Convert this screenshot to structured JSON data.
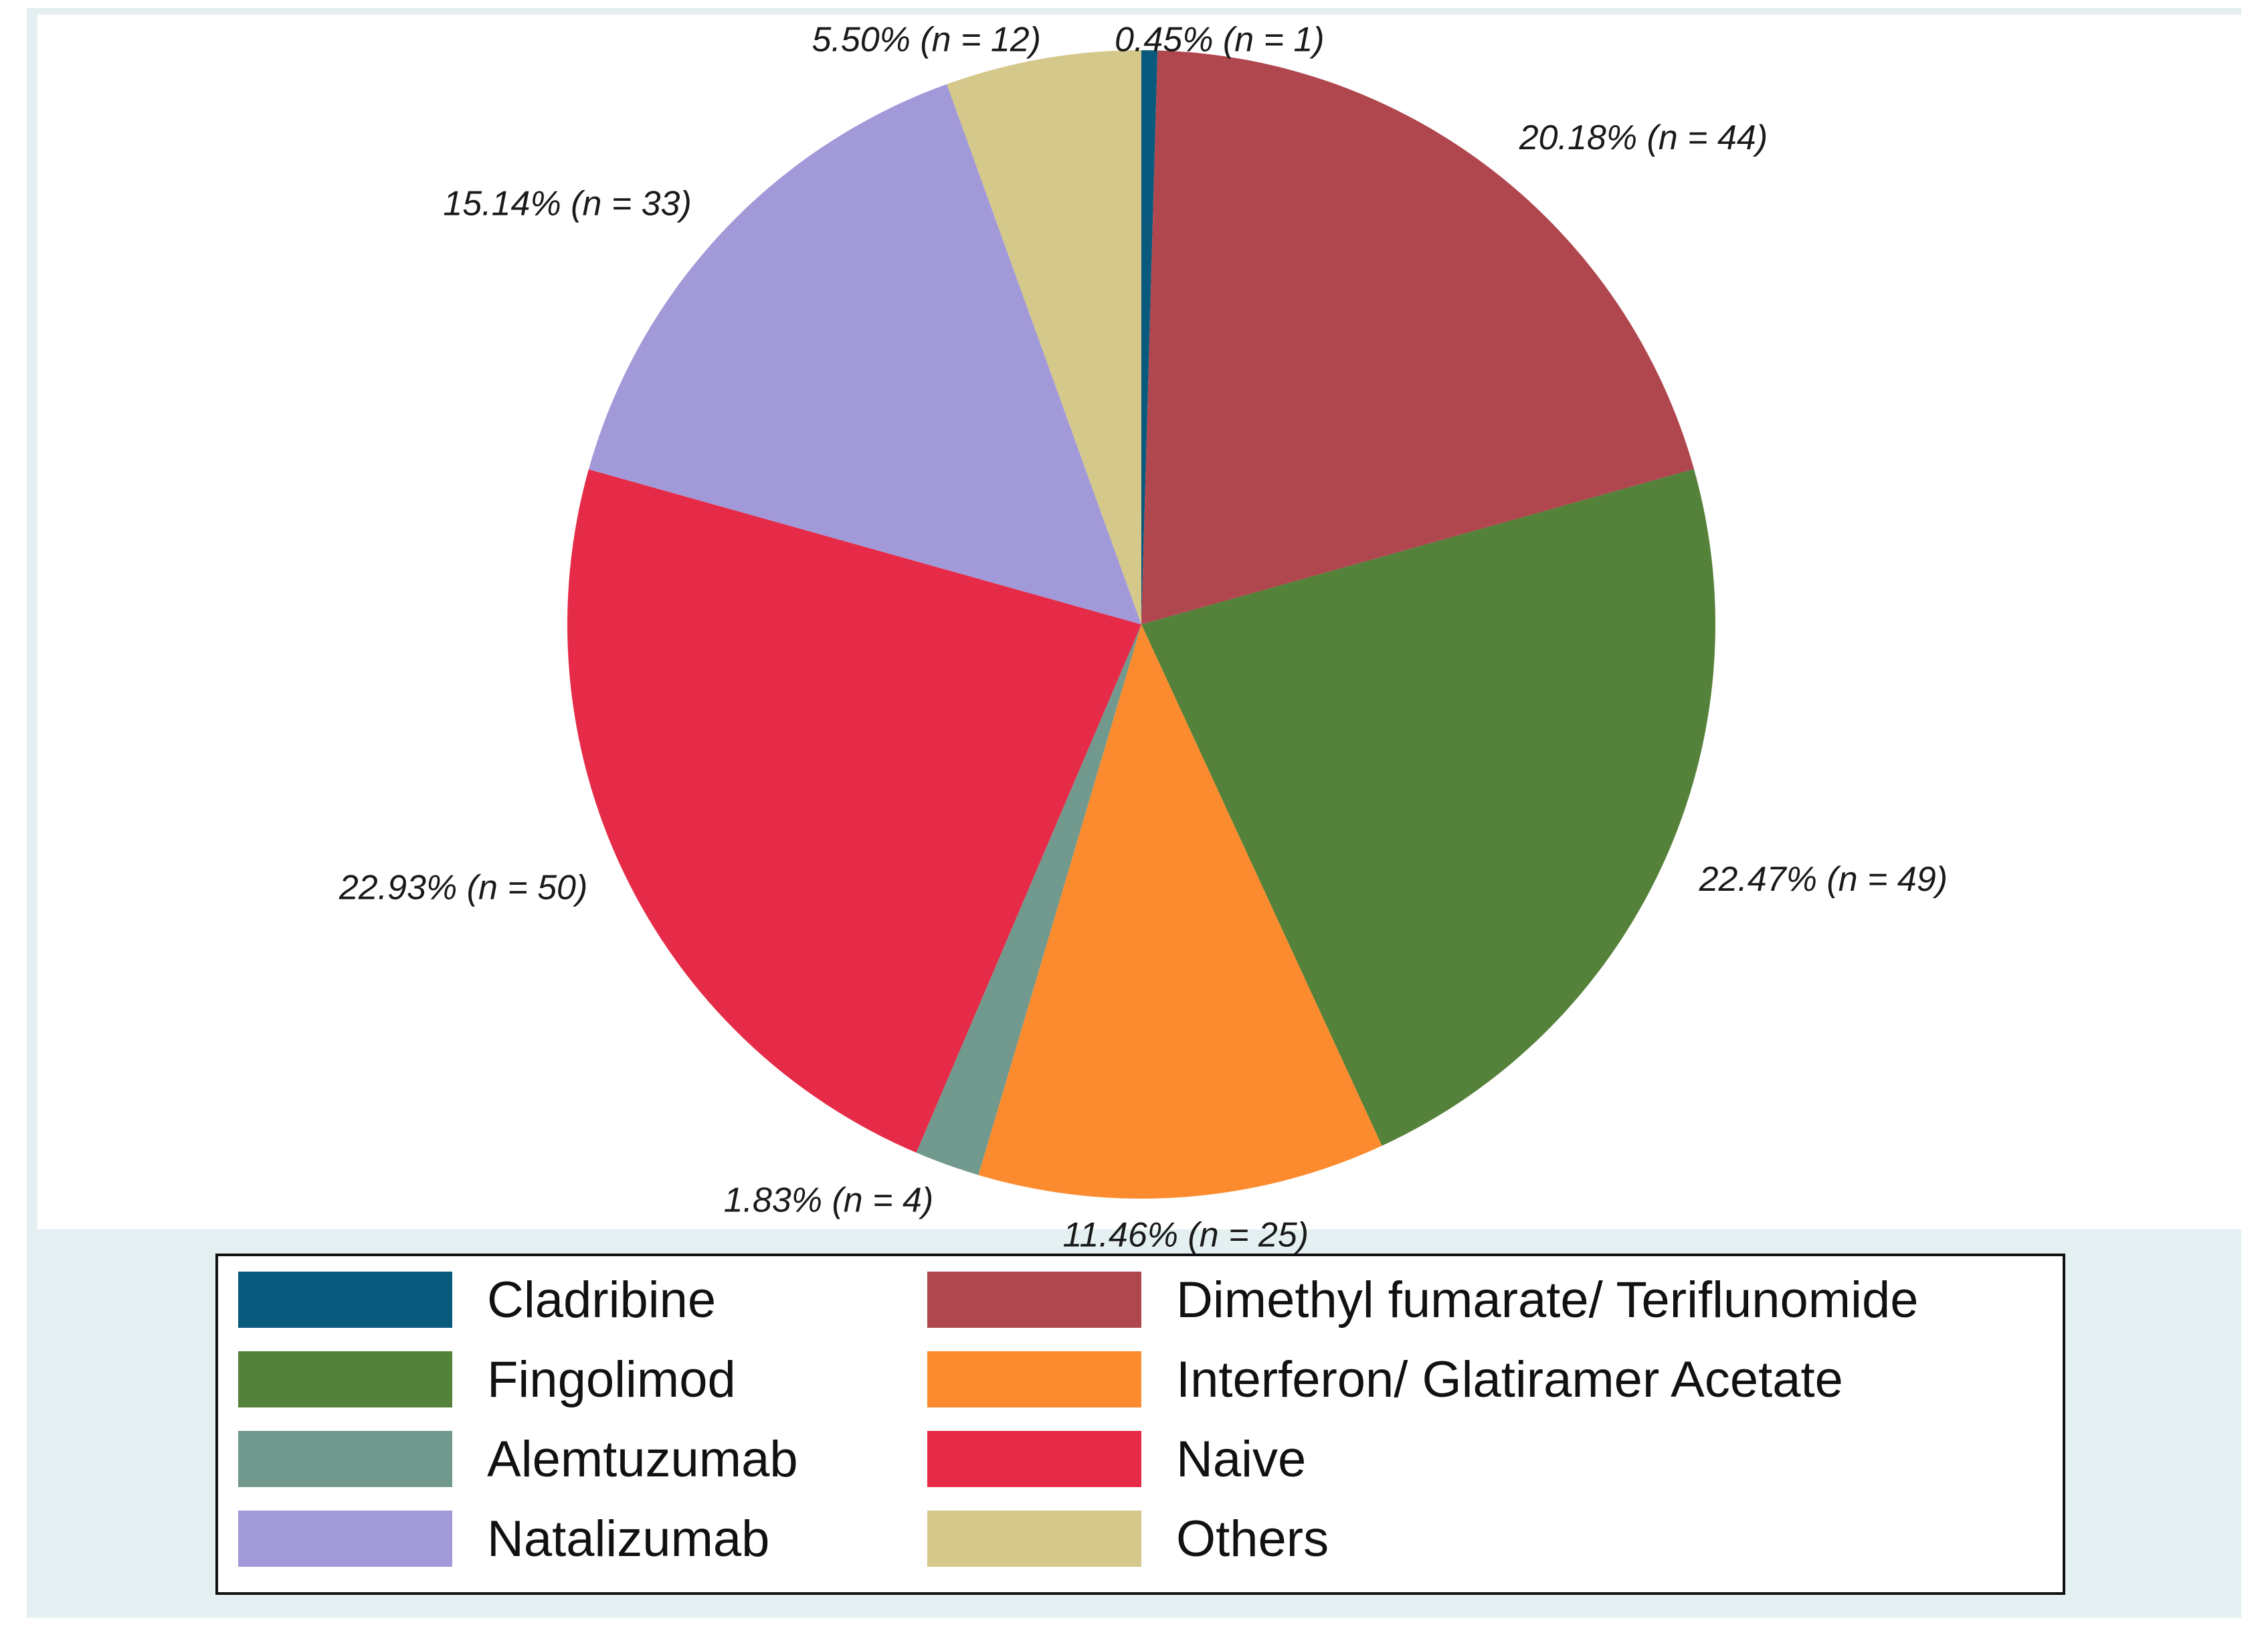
{
  "chart_data": {
    "type": "pie",
    "title": "",
    "start": "12 o'clock",
    "direction": "clockwise",
    "slices": [
      {
        "name": "Cladribine",
        "label": "0.45% (n = 1)",
        "percent": 0.45,
        "n": 1,
        "color": "#0a5a7e"
      },
      {
        "name": "Dimethyl fumarate/ Teriflunomide",
        "label": "20.18% (n = 44)",
        "percent": 20.18,
        "n": 44,
        "color": "#b0464e"
      },
      {
        "name": "Fingolimod",
        "label": "22.47% (n = 49)",
        "percent": 22.47,
        "n": 49,
        "color": "#55823a"
      },
      {
        "name": "Interferon/ Glatiramer Acetate",
        "label": "11.46% (n = 25)",
        "percent": 11.46,
        "n": 25,
        "color": "#fb8b2e"
      },
      {
        "name": "Alemtuzumab",
        "label": "1.83% (n = 4)",
        "percent": 1.83,
        "n": 4,
        "color": "#71998e"
      },
      {
        "name": "Naive",
        "label": "22.93% (n = 50)",
        "percent": 22.93,
        "n": 50,
        "color": "#e52b47"
      },
      {
        "name": "Natalizumab",
        "label": "15.14% (n = 33)",
        "percent": 15.14,
        "n": 33,
        "color": "#a299d9"
      },
      {
        "name": "Others",
        "label": "5.50% (n = 12)",
        "percent": 5.5,
        "n": 12,
        "color": "#d4c88b"
      }
    ],
    "legend": {
      "placement": "bottom",
      "columns": 2,
      "entries": [
        "Cladribine",
        "Dimethyl fumarate/ Teriflunomide",
        "Fingolimod",
        "Interferon/ Glatiramer Acetate",
        "Alemtuzumab",
        "Naive",
        "Natalizumab",
        "Others"
      ]
    }
  }
}
